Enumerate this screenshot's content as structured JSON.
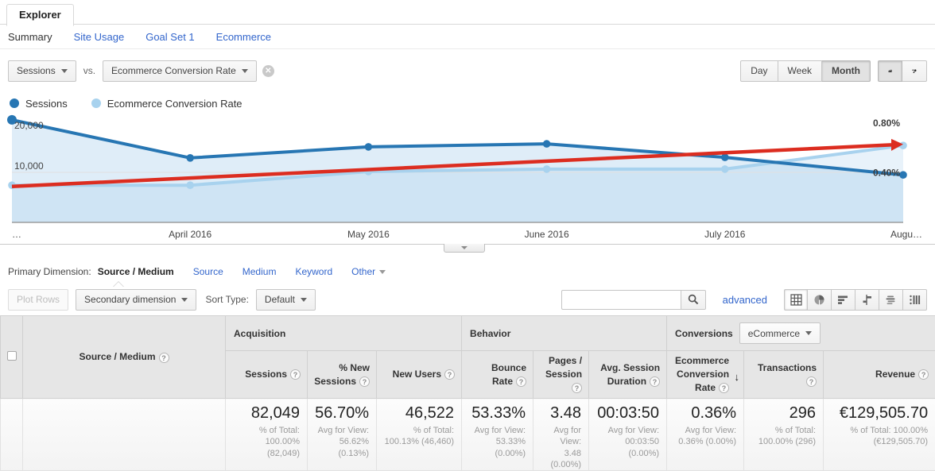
{
  "header": {
    "tab": "Explorer",
    "nav": [
      {
        "label": "Summary",
        "active": true
      },
      {
        "label": "Site Usage",
        "active": false
      },
      {
        "label": "Goal Set 1",
        "active": false
      },
      {
        "label": "Ecommerce",
        "active": false
      }
    ]
  },
  "controls": {
    "metric_a": "Sessions",
    "vs_label": "vs.",
    "metric_b": "Ecommerce Conversion Rate",
    "granularity": [
      {
        "label": "Day",
        "active": false
      },
      {
        "label": "Week",
        "active": false
      },
      {
        "label": "Month",
        "active": true
      }
    ]
  },
  "legend": [
    {
      "label": "Sessions",
      "color": "#2776b3"
    },
    {
      "label": "Ecommerce Conversion Rate",
      "color": "#a8d2ee"
    }
  ],
  "chart_data": {
    "type": "line",
    "x_tick_labels": [
      "…",
      "April 2016",
      "May 2016",
      "June 2016",
      "July 2016",
      "Augu…"
    ],
    "series": [
      {
        "name": "Sessions",
        "axis": "left",
        "color": "#2776b3",
        "fill": "rgba(149,196,232,0.30)",
        "values": [
          20500,
          12900,
          15100,
          15700,
          13000,
          9500
        ]
      },
      {
        "name": "Ecommerce Conversion Rate",
        "axis": "right",
        "color": "#a8d2ee",
        "fill": "rgba(149,196,232,0.22)",
        "values": [
          0.3,
          0.3,
          0.41,
          0.43,
          0.43,
          0.62
        ]
      }
    ],
    "trend": {
      "name": "trend-line",
      "axis": "right",
      "color": "#dc2d20",
      "values": [
        0.29,
        0.63
      ]
    },
    "left_axis": {
      "min": 0,
      "max": 21600,
      "ticks": [
        10000,
        20000
      ],
      "tick_labels": [
        "10,000",
        "20,000"
      ]
    },
    "right_axis": {
      "min": 0,
      "max": 0.8715,
      "ticks": [
        0.4,
        0.8
      ],
      "tick_labels": [
        "0.40%",
        "0.80%"
      ]
    },
    "grid": "horizontal-only",
    "legend_position": "top-left"
  },
  "dimension_bar": {
    "label": "Primary Dimension:",
    "active": "Source / Medium",
    "links": [
      "Source",
      "Medium",
      "Keyword"
    ],
    "other_label": "Other"
  },
  "toolbar": {
    "plot_rows": "Plot Rows",
    "secondary_dimension": "Secondary dimension",
    "sort_type_label": "Sort Type:",
    "sort_type_value": "Default",
    "search_placeholder": "",
    "advanced_label": "advanced"
  },
  "table": {
    "dimension_header": "Source / Medium",
    "groups": [
      {
        "label": "Acquisition"
      },
      {
        "label": "Behavior"
      },
      {
        "label": "Conversions",
        "dropdown_value": "eCommerce"
      }
    ],
    "columns": [
      {
        "label": "Sessions"
      },
      {
        "label": "% New Sessions"
      },
      {
        "label": "New Users"
      },
      {
        "label": "Bounce Rate"
      },
      {
        "label": "Pages / Session"
      },
      {
        "label": "Avg. Session Duration"
      },
      {
        "label": "Ecommerce Conversion Rate",
        "sorted": "desc"
      },
      {
        "label": "Transactions"
      },
      {
        "label": "Revenue"
      }
    ],
    "totals": {
      "values": [
        "82,049",
        "56.70%",
        "46,522",
        "53.33%",
        "3.48",
        "00:03:50",
        "0.36%",
        "296",
        "€129,505.70"
      ],
      "sublabels": [
        "% of Total: 100.00% (82,049)",
        "Avg for View: 56.62% (0.13%)",
        "% of Total: 100.13% (46,460)",
        "Avg for View: 53.33% (0.00%)",
        "Avg for View: 3.48 (0.00%)",
        "Avg for View: 00:03:50 (0.00%)",
        "Avg for View: 0.36% (0.00%)",
        "% of Total: 100.00% (296)",
        "% of Total: 100.00% (€129,505.70)"
      ]
    }
  }
}
